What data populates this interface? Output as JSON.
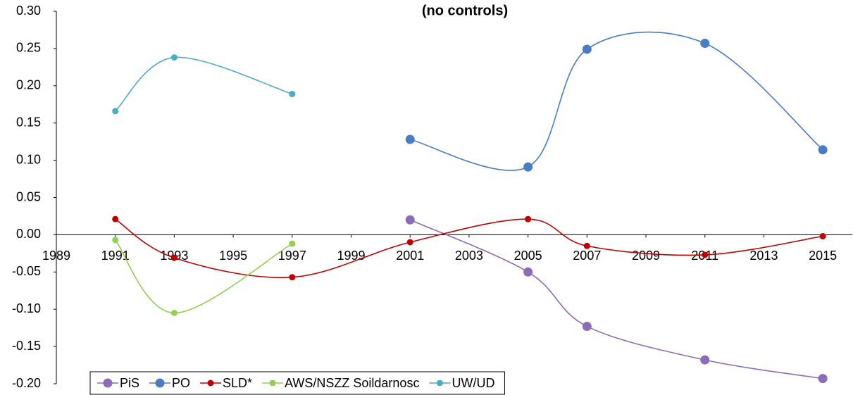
{
  "chart_data": {
    "type": "line",
    "title": "(no controls)",
    "x": [
      1991,
      1993,
      1997,
      2001,
      2005,
      2007,
      2011,
      2015
    ],
    "series": [
      {
        "name": "PiS",
        "color": "#8c6bb8",
        "values": [
          null,
          null,
          null,
          0.02,
          -0.05,
          -0.123,
          -0.168,
          -0.193
        ]
      },
      {
        "name": "PO",
        "color": "#4a7cc4",
        "values": [
          null,
          null,
          null,
          0.128,
          0.091,
          0.249,
          0.257,
          0.114
        ]
      },
      {
        "name": "SLD*",
        "color": "#c00000",
        "values": [
          0.021,
          -0.031,
          -0.057,
          -0.01,
          0.021,
          -0.015,
          -0.027,
          -0.002
        ]
      },
      {
        "name": "AWS/NSZZ Soildarnosc",
        "color": "#92d050",
        "values": [
          -0.007,
          -0.105,
          -0.012,
          null,
          null,
          null,
          null,
          null
        ]
      },
      {
        "name": "UW/UD",
        "color": "#4bacc6",
        "values": [
          0.166,
          0.238,
          0.189,
          null,
          null,
          null,
          null,
          null
        ]
      }
    ],
    "xlim": [
      1989,
      2016
    ],
    "xticks": [
      1989,
      1991,
      1993,
      1995,
      1997,
      1999,
      2001,
      2003,
      2005,
      2007,
      2009,
      2011,
      2013,
      2015
    ],
    "ylim": [
      -0.2,
      0.3
    ],
    "yticks": [
      {
        "value": 0.3,
        "label": "0.30"
      },
      0.25,
      {
        "value": 0.2,
        "label": "0.20"
      },
      0.15,
      {
        "value": 0.1,
        "label": "0.10"
      },
      0.05,
      {
        "value": 0,
        "label": "0.00"
      },
      -0.05,
      {
        "value": -0.1,
        "label": "-0.10"
      },
      -0.15,
      {
        "value": -0.2,
        "label": "-0.20"
      }
    ],
    "grid": false,
    "legend": "bottom"
  }
}
